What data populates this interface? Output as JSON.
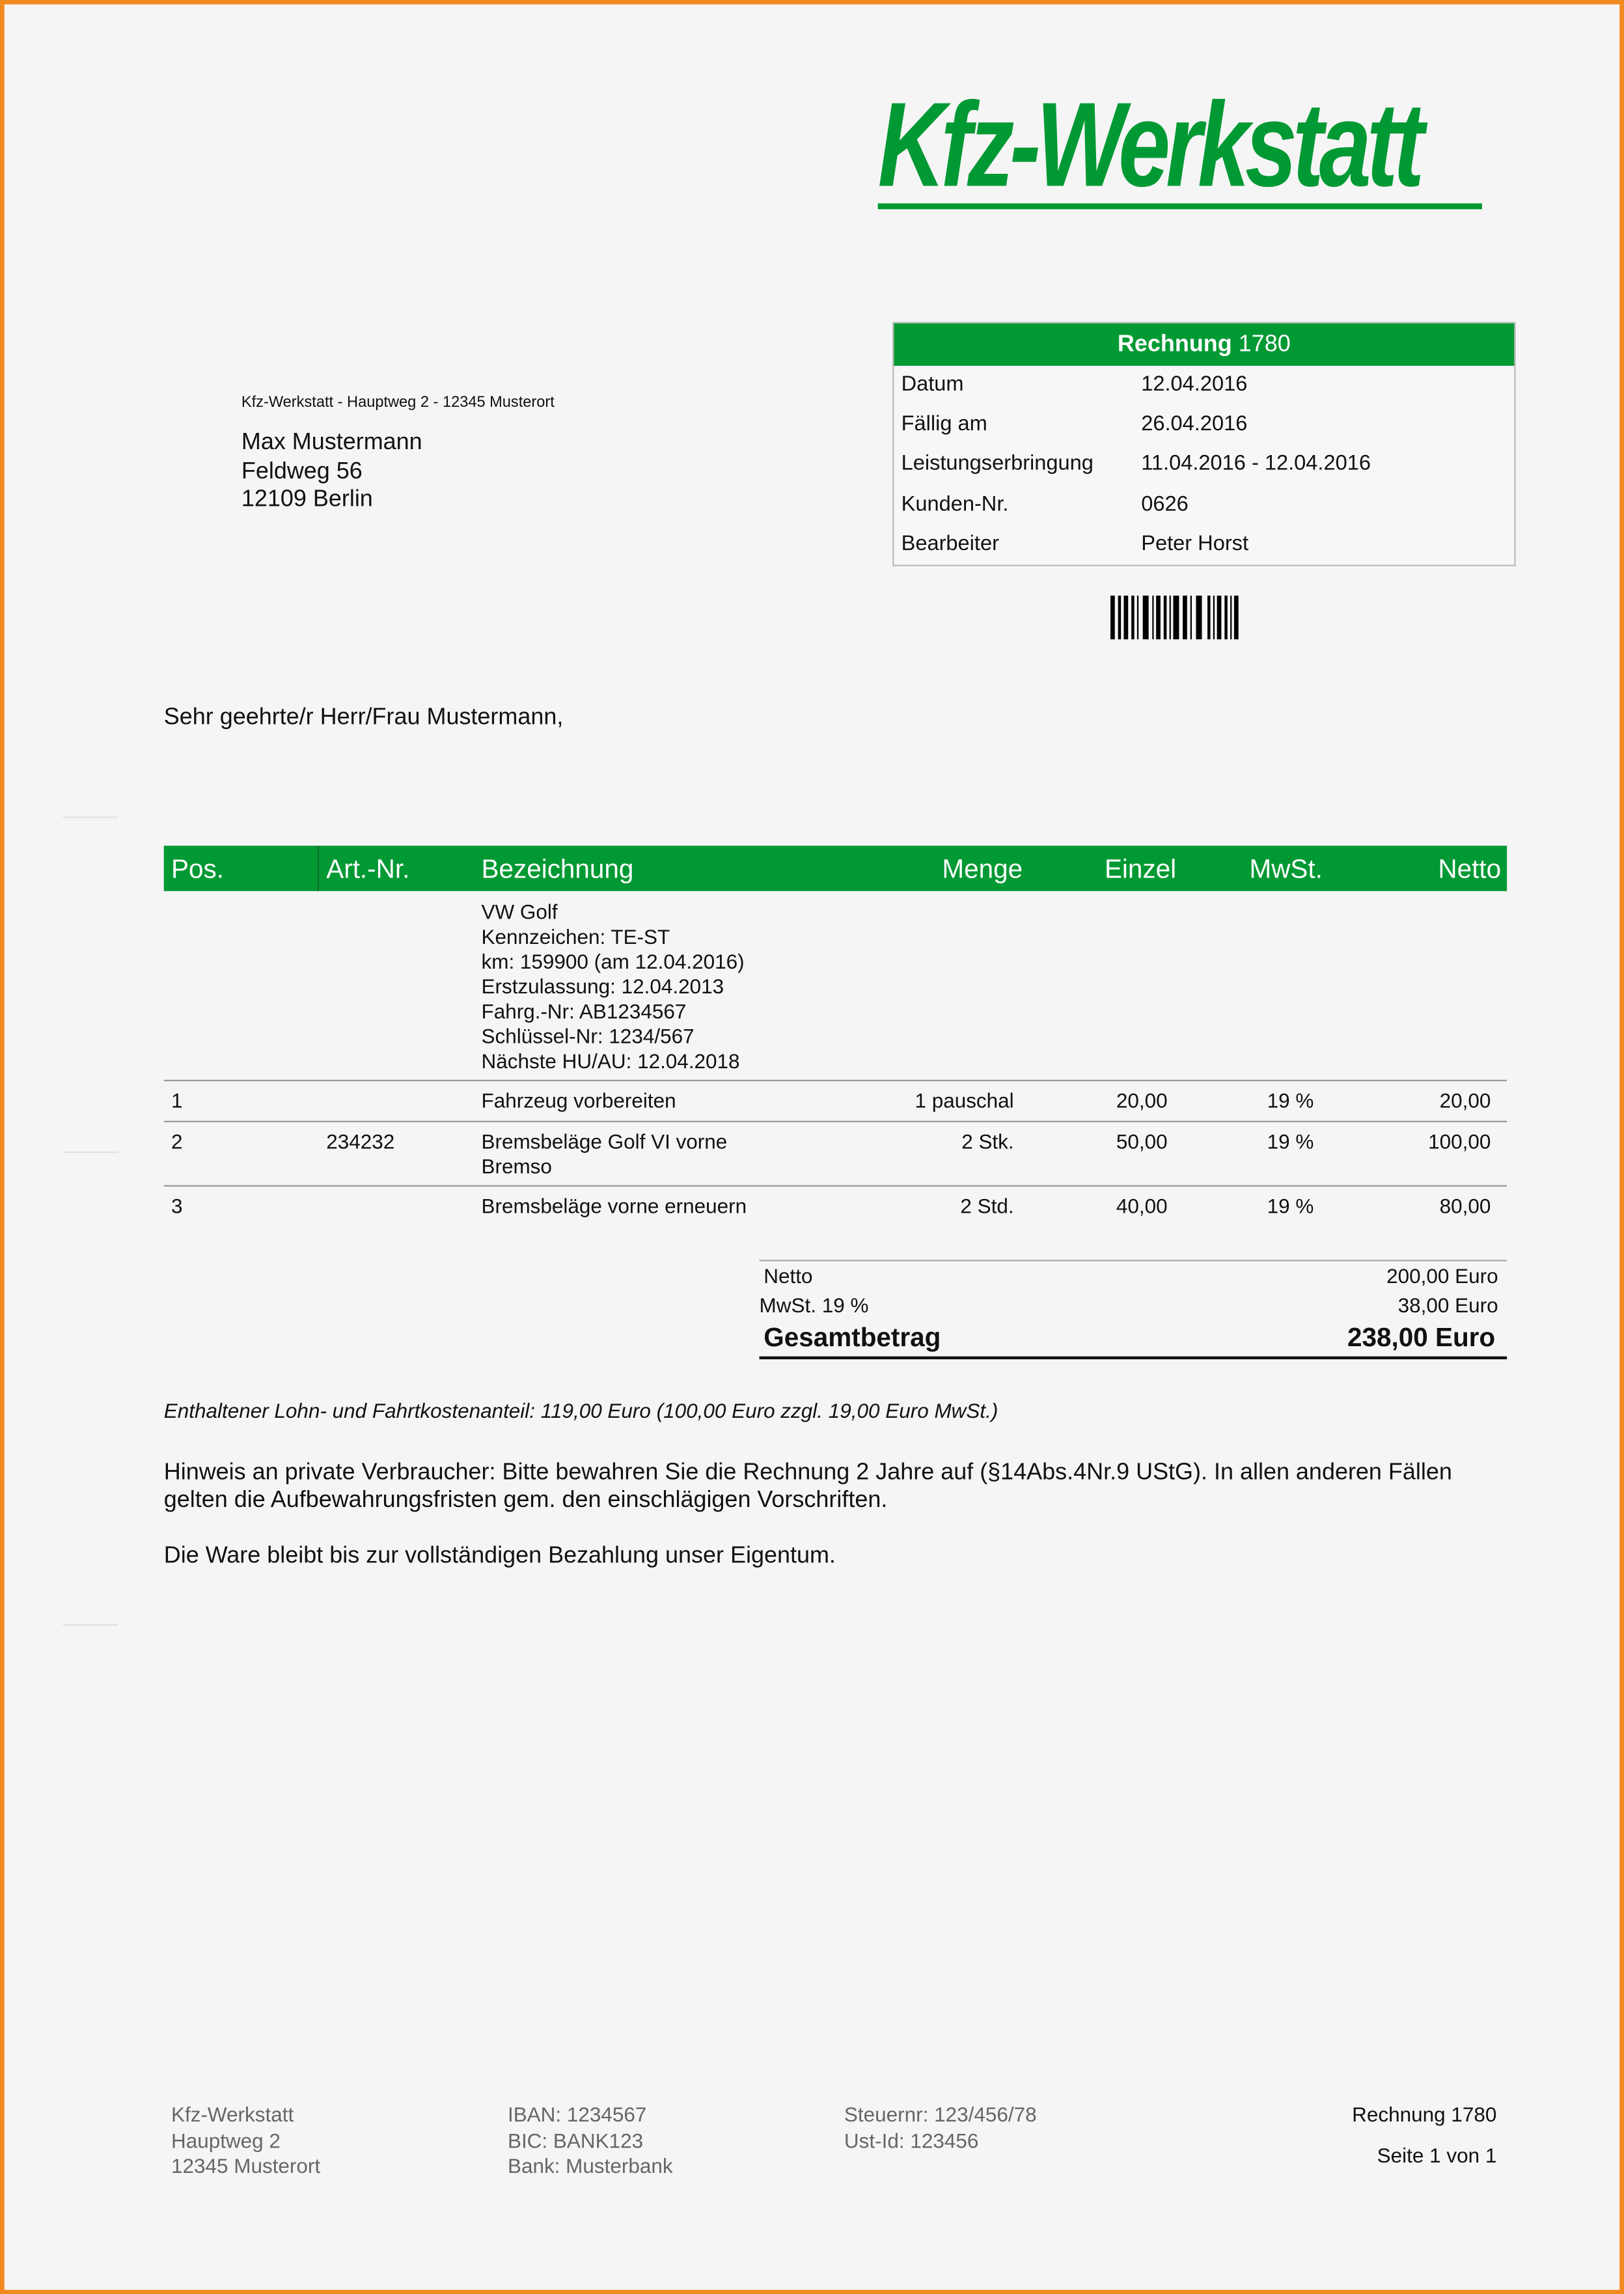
{
  "brand": {
    "logo_text": "Kfz-Werkstatt",
    "accent_color": "#009933",
    "border_color": "#f0891e"
  },
  "invoice_box": {
    "title_bold": "Rechnung",
    "title_number": "1780",
    "rows": [
      {
        "label": "Datum",
        "value": "12.04.2016"
      },
      {
        "label": "Fällig am",
        "value": "26.04.2016"
      },
      {
        "label": "Leistungserbringung",
        "value": "11.04.2016 - 12.04.2016"
      },
      {
        "label": "Kunden-Nr.",
        "value": "0626"
      },
      {
        "label": "Bearbeiter",
        "value": "Peter Horst"
      }
    ]
  },
  "barcode_icon": "barcode-icon",
  "sender_line": "Kfz-Werkstatt - Hauptweg 2 - 12345 Musterort",
  "recipient": [
    "Max Mustermann",
    "Feldweg 56",
    "12109 Berlin"
  ],
  "salutation": "Sehr geehrte/r Herr/Frau Mustermann,",
  "table": {
    "headers": {
      "pos": "Pos.",
      "art": "Art.-Nr.",
      "bez": "Bezeichnung",
      "menge": "Menge",
      "einzel": "Einzel",
      "mwst": "MwSt.",
      "netto": "Netto"
    },
    "vehicle_info": [
      "VW Golf",
      "Kennzeichen: TE-ST",
      "km: 159900 (am 12.04.2016)",
      "Erstzulassung: 12.04.2013",
      "Fahrg.-Nr: AB1234567",
      "Schlüssel-Nr: 1234/567",
      "Nächste HU/AU: 12.04.2018"
    ],
    "rows": [
      {
        "pos": "1",
        "art": "",
        "bez": "Fahrzeug vorbereiten",
        "bez2": "",
        "menge": "1 pauschal",
        "einzel": "20,00",
        "mwst": "19 %",
        "netto": "20,00"
      },
      {
        "pos": "2",
        "art": "234232",
        "bez": "Bremsbeläge Golf VI vorne",
        "bez2": "Bremso",
        "menge": "2 Stk.",
        "einzel": "50,00",
        "mwst": "19 %",
        "netto": "100,00"
      },
      {
        "pos": "3",
        "art": "",
        "bez": "Bremsbeläge vorne erneuern",
        "bez2": "",
        "menge": "2 Std.",
        "einzel": "40,00",
        "mwst": "19 %",
        "netto": "80,00"
      }
    ]
  },
  "totals": {
    "netto_label": "Netto",
    "netto_value": "200,00 Euro",
    "mwst_label": "MwSt. 19 %",
    "mwst_value": "38,00 Euro",
    "gesamt_label": "Gesamtbetrag",
    "gesamt_value": "238,00 Euro"
  },
  "notes": {
    "lohn": "Enthaltener Lohn- und Fahrtkostenanteil: 119,00 Euro (100,00 Euro zzgl. 19,00 Euro MwSt.)",
    "hinweis_1": "Hinweis an private Verbraucher: Bitte bewahren Sie die Rechnung 2 Jahre auf (§14Abs.4Nr.9 UStG). In allen anderen Fällen",
    "hinweis_2": "gelten die Aufbewahrungsfristen gem. den einschlägigen Vorschriften.",
    "eigentum": "Die Ware bleibt bis zur vollständigen Bezahlung unser Eigentum."
  },
  "footer": {
    "col1": [
      "Kfz-Werkstatt",
      "Hauptweg 2",
      "12345 Musterort"
    ],
    "col2": [
      "IBAN: 1234567",
      "BIC: BANK123",
      "Bank: Musterbank"
    ],
    "col3": [
      "Steuernr: 123/456/78",
      "Ust-Id: 123456"
    ],
    "invoice": "Rechnung 1780",
    "page": "Seite 1 von 1"
  }
}
